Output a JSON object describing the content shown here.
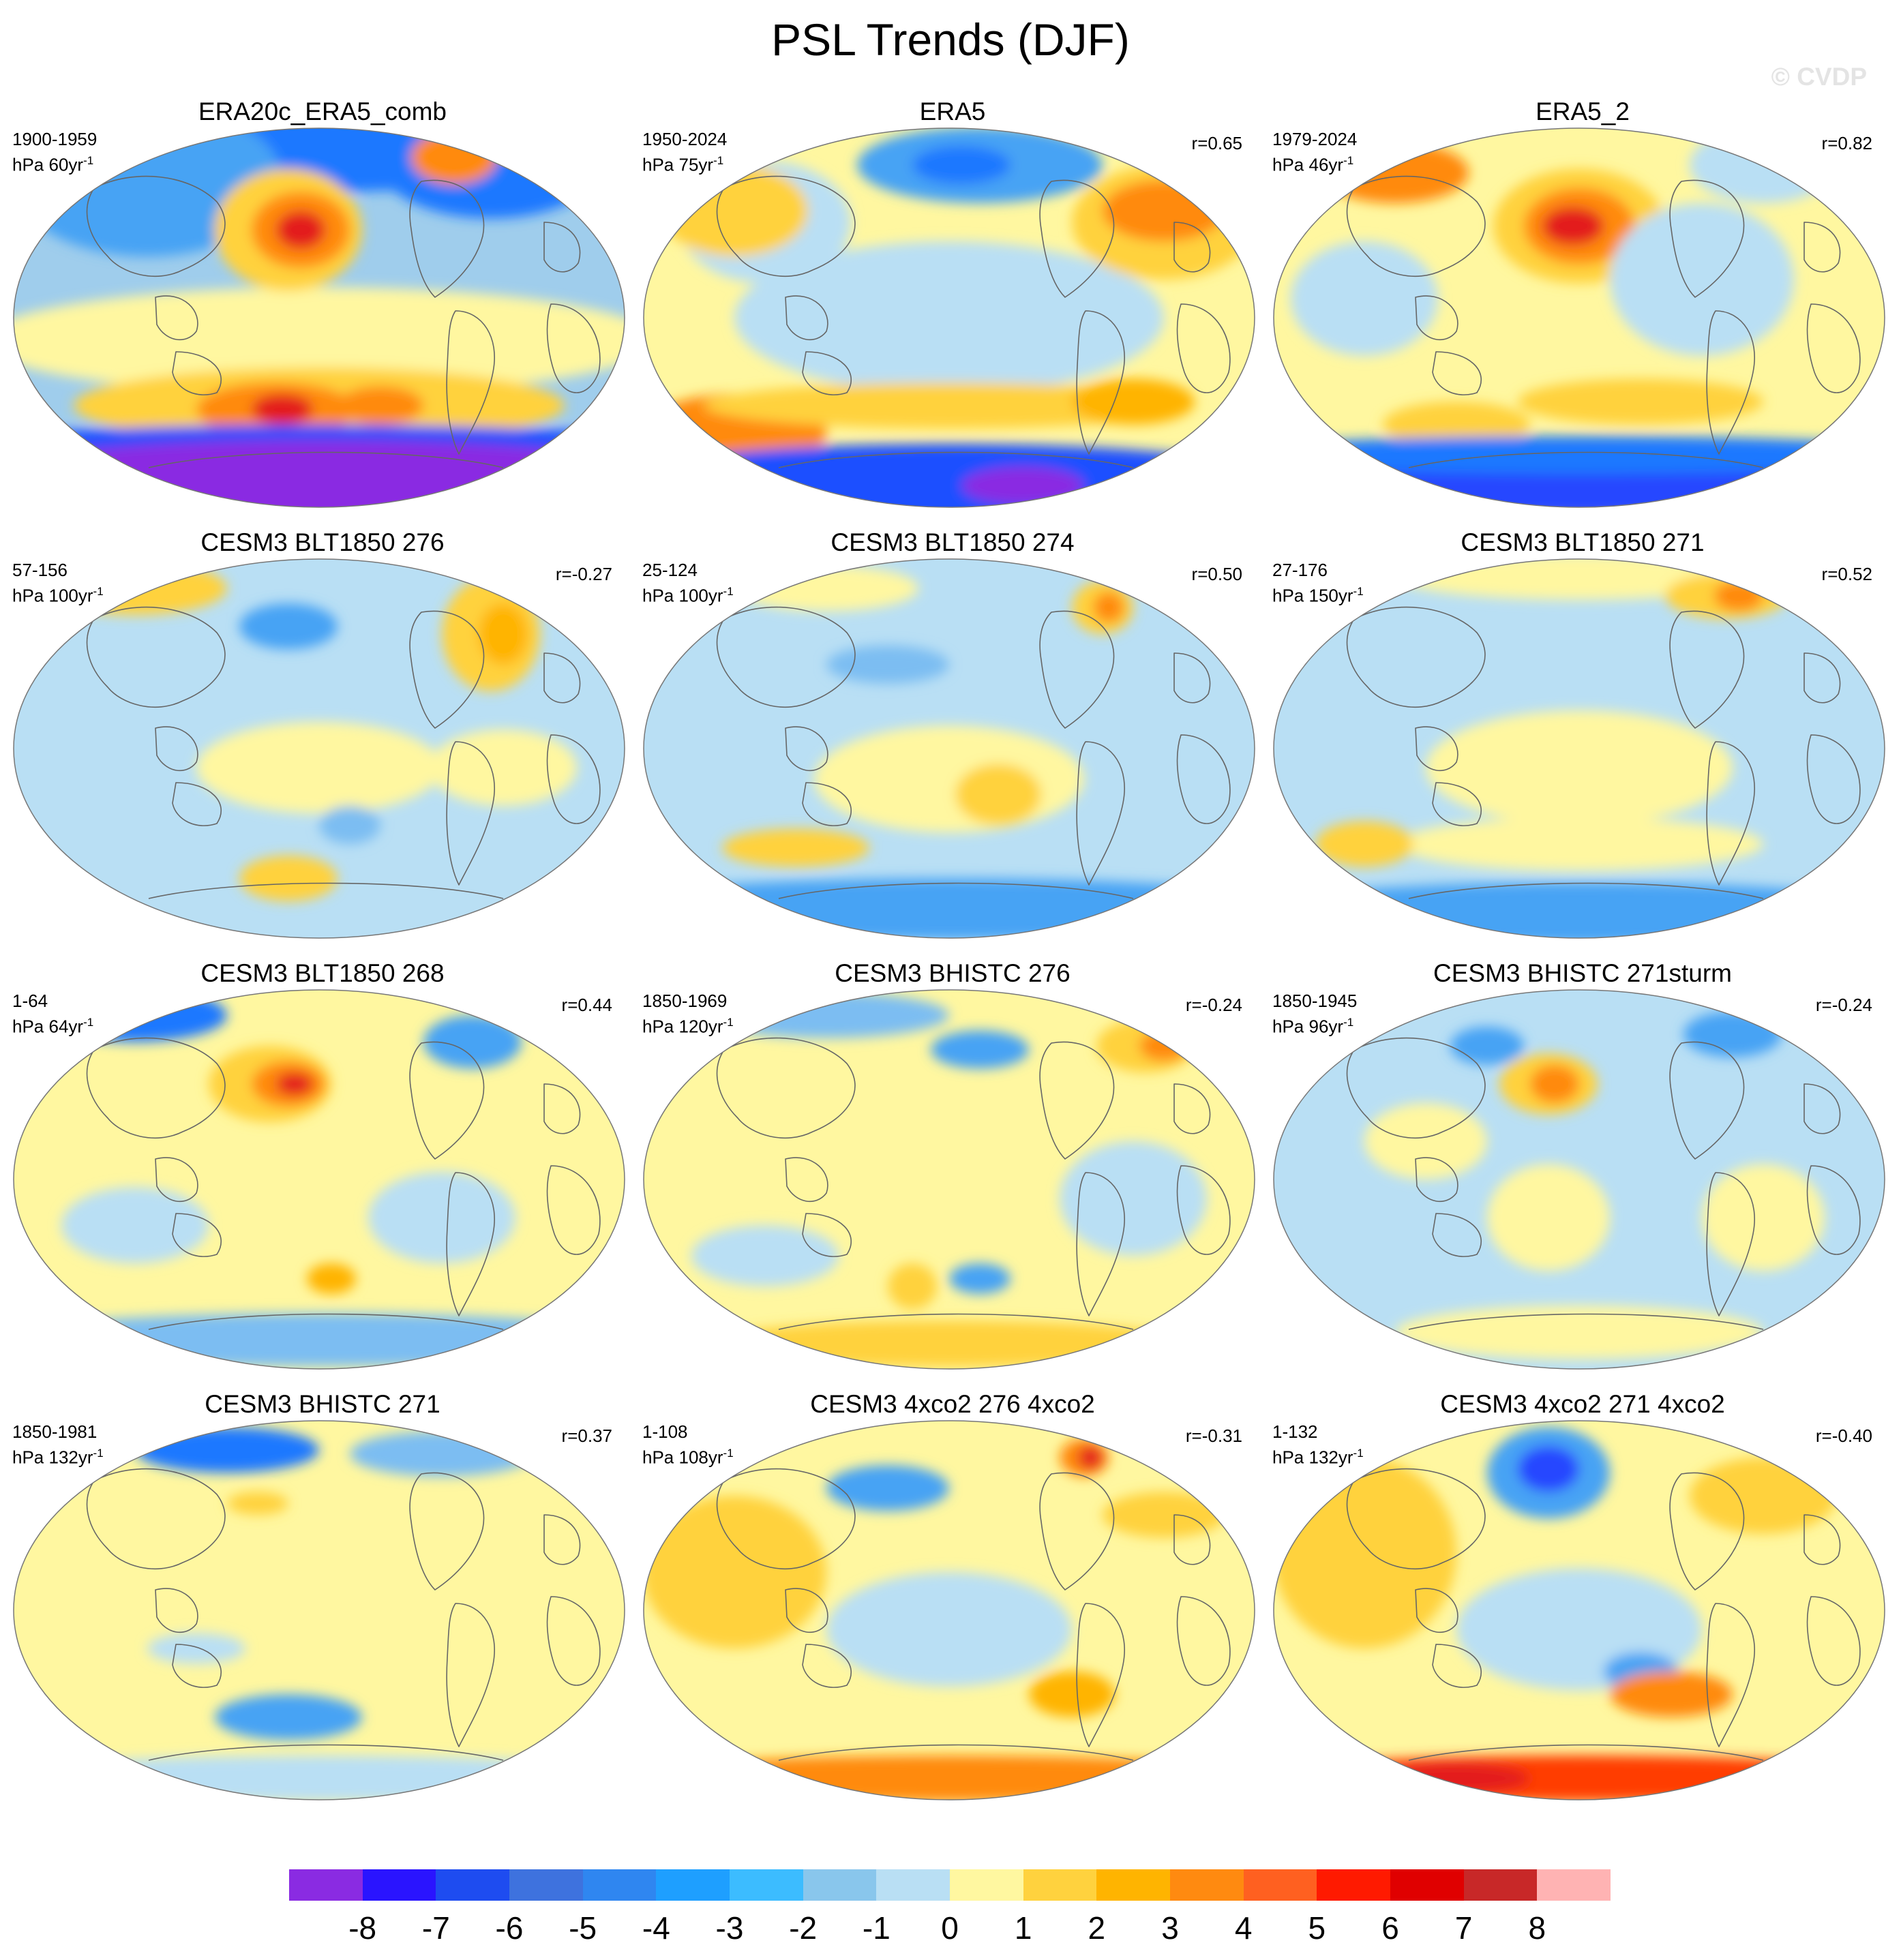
{
  "figure": {
    "title": "PSL Trends (DJF)",
    "watermark": "© CVDP"
  },
  "colors": {
    "land_outline": "#666666",
    "map_border": "#777777"
  },
  "panels": [
    {
      "title": "ERA20c_ERA5_comb",
      "period": "1900-1959",
      "unit_prefix": "hPa 60yr",
      "unit_exp": "-1",
      "corr": "",
      "base": "#9fcdec",
      "blobs": [
        [
          0.5,
          0.05,
          0.55,
          0.12,
          "#1e78ff"
        ],
        [
          0.22,
          0.14,
          0.22,
          0.2,
          "#47a3f4"
        ],
        [
          0.78,
          0.1,
          0.18,
          0.14,
          "#1e78ff"
        ],
        [
          0.5,
          0.56,
          0.55,
          0.14,
          "#fff7a0"
        ],
        [
          0.45,
          0.27,
          0.12,
          0.16,
          "#ffd23e"
        ],
        [
          0.47,
          0.27,
          0.08,
          0.1,
          "#ff8a10"
        ],
        [
          0.47,
          0.27,
          0.04,
          0.05,
          "#e31a1c"
        ],
        [
          0.72,
          0.08,
          0.07,
          0.07,
          "#ff8a10"
        ],
        [
          0.5,
          0.73,
          0.4,
          0.1,
          "#ffd23e"
        ],
        [
          0.43,
          0.74,
          0.13,
          0.07,
          "#ff8a10"
        ],
        [
          0.44,
          0.74,
          0.05,
          0.04,
          "#e31a1c"
        ],
        [
          0.6,
          0.73,
          0.07,
          0.05,
          "#ff8a10"
        ],
        [
          0.5,
          0.84,
          0.6,
          0.06,
          "#1e50ff"
        ],
        [
          0.5,
          0.93,
          0.6,
          0.11,
          "#8a2be2"
        ]
      ]
    },
    {
      "title": "ERA5",
      "period": "1950-2024",
      "unit_prefix": "hPa 75yr",
      "unit_exp": "-1",
      "corr": "r=0.65",
      "base": "#fff7a0",
      "blobs": [
        [
          0.55,
          0.1,
          0.2,
          0.1,
          "#47a3f4"
        ],
        [
          0.52,
          0.1,
          0.08,
          0.05,
          "#1e78ff"
        ],
        [
          0.2,
          0.25,
          0.14,
          0.16,
          "#b9dff4"
        ],
        [
          0.5,
          0.5,
          0.35,
          0.2,
          "#b9dff4"
        ],
        [
          0.15,
          0.22,
          0.12,
          0.12,
          "#ffd23e"
        ],
        [
          0.85,
          0.25,
          0.15,
          0.15,
          "#ffd23e"
        ],
        [
          0.85,
          0.22,
          0.1,
          0.08,
          "#ff8a10"
        ],
        [
          0.15,
          0.8,
          0.15,
          0.1,
          "#ff8a10"
        ],
        [
          0.5,
          0.73,
          0.4,
          0.06,
          "#ffd23e"
        ],
        [
          0.8,
          0.72,
          0.1,
          0.06,
          "#ffb400"
        ],
        [
          0.5,
          0.93,
          0.55,
          0.1,
          "#1e50ff"
        ],
        [
          0.62,
          0.94,
          0.1,
          0.05,
          "#8a2be2"
        ]
      ]
    },
    {
      "title": "ERA5_2",
      "period": "1979-2024",
      "unit_prefix": "hPa 46yr",
      "unit_exp": "-1",
      "corr": "r=0.82",
      "base": "#fff7a0",
      "blobs": [
        [
          0.2,
          0.12,
          0.12,
          0.08,
          "#ff8a10"
        ],
        [
          0.5,
          0.26,
          0.14,
          0.15,
          "#ffd23e"
        ],
        [
          0.5,
          0.26,
          0.09,
          0.1,
          "#ff8a10"
        ],
        [
          0.49,
          0.26,
          0.05,
          0.05,
          "#e31a1c"
        ],
        [
          0.15,
          0.45,
          0.12,
          0.15,
          "#b9dff4"
        ],
        [
          0.7,
          0.4,
          0.15,
          0.2,
          "#b9dff4"
        ],
        [
          0.8,
          0.1,
          0.12,
          0.1,
          "#b9dff4"
        ],
        [
          0.6,
          0.72,
          0.2,
          0.06,
          "#ffd23e"
        ],
        [
          0.3,
          0.78,
          0.12,
          0.06,
          "#ffd23e"
        ],
        [
          0.5,
          0.92,
          0.6,
          0.1,
          "#2846ff"
        ],
        [
          0.5,
          0.86,
          0.6,
          0.05,
          "#1e78ff"
        ]
      ]
    },
    {
      "title": "CESM3 BLT1850 276",
      "period": "57-156",
      "unit_prefix": "hPa 100yr",
      "unit_exp": "-1",
      "corr": "r=-0.27",
      "base": "#b9dff4",
      "blobs": [
        [
          0.2,
          0.08,
          0.15,
          0.07,
          "#ffd23e"
        ],
        [
          0.78,
          0.2,
          0.08,
          0.15,
          "#ffd23e"
        ],
        [
          0.8,
          0.2,
          0.04,
          0.08,
          "#ffb400"
        ],
        [
          0.45,
          0.18,
          0.08,
          0.06,
          "#47a3f4"
        ],
        [
          0.5,
          0.55,
          0.2,
          0.12,
          "#fff7a0"
        ],
        [
          0.8,
          0.55,
          0.12,
          0.1,
          "#fff7a0"
        ],
        [
          0.45,
          0.84,
          0.08,
          0.06,
          "#ffd23e"
        ],
        [
          0.55,
          0.7,
          0.05,
          0.05,
          "#7bbdf2"
        ]
      ]
    },
    {
      "title": "CESM3 BLT1850 274",
      "period": "25-124",
      "unit_prefix": "hPa 100yr",
      "unit_exp": "-1",
      "corr": "r=0.50",
      "base": "#b9dff4",
      "blobs": [
        [
          0.3,
          0.08,
          0.15,
          0.06,
          "#fff7a0"
        ],
        [
          0.75,
          0.13,
          0.05,
          0.07,
          "#ffd23e"
        ],
        [
          0.76,
          0.13,
          0.025,
          0.04,
          "#ff8a10"
        ],
        [
          0.4,
          0.28,
          0.1,
          0.05,
          "#7bbdf2"
        ],
        [
          0.5,
          0.58,
          0.22,
          0.14,
          "#fff7a0"
        ],
        [
          0.58,
          0.62,
          0.07,
          0.08,
          "#ffd23e"
        ],
        [
          0.25,
          0.76,
          0.12,
          0.05,
          "#ffd23e"
        ],
        [
          0.5,
          0.92,
          0.6,
          0.08,
          "#47a3f4"
        ]
      ]
    },
    {
      "title": "CESM3 BLT1850 271",
      "period": "27-176",
      "unit_prefix": "hPa 150yr",
      "unit_exp": "-1",
      "corr": "r=0.52",
      "base": "#b9dff4",
      "blobs": [
        [
          0.5,
          0.05,
          0.3,
          0.06,
          "#fff7a0"
        ],
        [
          0.74,
          0.1,
          0.1,
          0.06,
          "#ffd23e"
        ],
        [
          0.76,
          0.1,
          0.04,
          0.04,
          "#ff8a10"
        ],
        [
          0.5,
          0.55,
          0.25,
          0.15,
          "#fff7a0"
        ],
        [
          0.5,
          0.75,
          0.3,
          0.07,
          "#fff7a0"
        ],
        [
          0.15,
          0.75,
          0.08,
          0.06,
          "#ffd23e"
        ],
        [
          0.5,
          0.93,
          0.55,
          0.08,
          "#47a3f4"
        ]
      ]
    },
    {
      "title": "CESM3 BLT1850 268",
      "period": "1-64",
      "unit_prefix": "hPa 64yr",
      "unit_exp": "-1",
      "corr": "r=0.44",
      "base": "#fff7a0",
      "blobs": [
        [
          0.2,
          0.07,
          0.15,
          0.07,
          "#1e78ff"
        ],
        [
          0.75,
          0.14,
          0.08,
          0.07,
          "#47a3f4"
        ],
        [
          0.42,
          0.25,
          0.1,
          0.1,
          "#ffd23e"
        ],
        [
          0.45,
          0.25,
          0.06,
          0.06,
          "#ff8a10"
        ],
        [
          0.46,
          0.25,
          0.03,
          0.03,
          "#e31a1c"
        ],
        [
          0.2,
          0.62,
          0.12,
          0.1,
          "#b9dff4"
        ],
        [
          0.7,
          0.6,
          0.12,
          0.12,
          "#b9dff4"
        ],
        [
          0.52,
          0.76,
          0.04,
          0.04,
          "#ffb400"
        ],
        [
          0.5,
          0.92,
          0.55,
          0.07,
          "#7bbdf2"
        ]
      ]
    },
    {
      "title": "CESM3 BHISTC 276",
      "period": "1850-1969",
      "unit_prefix": "hPa 120yr",
      "unit_exp": "-1",
      "corr": "r=-0.24",
      "base": "#fff7a0",
      "blobs": [
        [
          0.3,
          0.07,
          0.2,
          0.06,
          "#7bbdf2"
        ],
        [
          0.55,
          0.16,
          0.08,
          0.05,
          "#47a3f4"
        ],
        [
          0.82,
          0.15,
          0.08,
          0.07,
          "#ffd23e"
        ],
        [
          0.85,
          0.15,
          0.04,
          0.04,
          "#ff8a10"
        ],
        [
          0.2,
          0.7,
          0.12,
          0.08,
          "#b9dff4"
        ],
        [
          0.8,
          0.55,
          0.12,
          0.15,
          "#b9dff4"
        ],
        [
          0.55,
          0.76,
          0.05,
          0.04,
          "#47a3f4"
        ],
        [
          0.44,
          0.78,
          0.04,
          0.06,
          "#ffd23e"
        ],
        [
          0.5,
          0.93,
          0.4,
          0.06,
          "#ffd23e"
        ]
      ]
    },
    {
      "title": "CESM3 BHISTC 271sturm",
      "period": "1850-1945",
      "unit_prefix": "hPa 96yr",
      "unit_exp": "-1",
      "corr": "r=-0.24",
      "base": "#b9dff4",
      "blobs": [
        [
          0.45,
          0.25,
          0.08,
          0.08,
          "#ffd23e"
        ],
        [
          0.46,
          0.25,
          0.04,
          0.05,
          "#ff8a10"
        ],
        [
          0.75,
          0.12,
          0.08,
          0.06,
          "#47a3f4"
        ],
        [
          0.35,
          0.15,
          0.06,
          0.05,
          "#47a3f4"
        ],
        [
          0.25,
          0.4,
          0.1,
          0.1,
          "#fff7a0"
        ],
        [
          0.45,
          0.6,
          0.1,
          0.14,
          "#fff7a0"
        ],
        [
          0.8,
          0.6,
          0.1,
          0.14,
          "#fff7a0"
        ],
        [
          0.5,
          0.9,
          0.3,
          0.07,
          "#fff7a0"
        ]
      ]
    },
    {
      "title": "CESM3 BHISTC 271",
      "period": "1850-1981",
      "unit_prefix": "hPa 132yr",
      "unit_exp": "-1",
      "corr": "r=0.37",
      "base": "#fff7a0",
      "blobs": [
        [
          0.35,
          0.08,
          0.15,
          0.06,
          "#1e78ff"
        ],
        [
          0.7,
          0.09,
          0.15,
          0.06,
          "#7bbdf2"
        ],
        [
          0.4,
          0.22,
          0.05,
          0.03,
          "#ffd23e"
        ],
        [
          0.3,
          0.6,
          0.08,
          0.04,
          "#b9dff4"
        ],
        [
          0.45,
          0.78,
          0.12,
          0.06,
          "#47a3f4"
        ],
        [
          0.5,
          0.94,
          0.55,
          0.06,
          "#b9dff4"
        ]
      ]
    },
    {
      "title": "CESM3 4xco2 276 4xco2",
      "period": "1-108",
      "unit_prefix": "hPa 108yr",
      "unit_exp": "-1",
      "corr": "r=-0.31",
      "base": "#fff7a0",
      "blobs": [
        [
          0.4,
          0.18,
          0.1,
          0.06,
          "#47a3f4"
        ],
        [
          0.72,
          0.1,
          0.04,
          0.05,
          "#ff8a10"
        ],
        [
          0.73,
          0.1,
          0.02,
          0.03,
          "#e31a1c"
        ],
        [
          0.15,
          0.4,
          0.15,
          0.2,
          "#ffd23e"
        ],
        [
          0.5,
          0.55,
          0.2,
          0.15,
          "#b9dff4"
        ],
        [
          0.7,
          0.72,
          0.07,
          0.06,
          "#ffb400"
        ],
        [
          0.5,
          0.94,
          0.55,
          0.06,
          "#ff8a10"
        ],
        [
          0.85,
          0.25,
          0.1,
          0.06,
          "#ffd23e"
        ]
      ]
    },
    {
      "title": "CESM3 4xco2 271 4xco2",
      "period": "1-132",
      "unit_prefix": "hPa 132yr",
      "unit_exp": "-1",
      "corr": "r=-0.40",
      "base": "#fff7a0",
      "blobs": [
        [
          0.45,
          0.14,
          0.1,
          0.12,
          "#47a3f4"
        ],
        [
          0.45,
          0.13,
          0.05,
          0.06,
          "#2846ff"
        ],
        [
          0.15,
          0.35,
          0.15,
          0.25,
          "#ffd23e"
        ],
        [
          0.5,
          0.55,
          0.2,
          0.16,
          "#b9dff4"
        ],
        [
          0.6,
          0.66,
          0.06,
          0.05,
          "#47a3f4"
        ],
        [
          0.65,
          0.72,
          0.1,
          0.06,
          "#ff8a10"
        ],
        [
          0.5,
          0.94,
          0.55,
          0.06,
          "#ff3c00"
        ],
        [
          0.3,
          0.94,
          0.12,
          0.04,
          "#e31a1c"
        ],
        [
          0.8,
          0.2,
          0.12,
          0.1,
          "#ffd23e"
        ]
      ]
    }
  ],
  "colorbar": {
    "colors": [
      "#8a2be2",
      "#2a14ff",
      "#1e4cf0",
      "#3e72de",
      "#2f86f0",
      "#1e9fff",
      "#3cbcff",
      "#89c6ec",
      "#b9dff4",
      "#fff7a0",
      "#ffd23e",
      "#ffb400",
      "#ff8a10",
      "#ff6020",
      "#ff1a00",
      "#e00000",
      "#c82828",
      "#ffb3b3"
    ],
    "labels": [
      "-8",
      "-7",
      "-6",
      "-5",
      "-4",
      "-3",
      "-2",
      "-1",
      "0",
      "1",
      "2",
      "3",
      "4",
      "5",
      "6",
      "7",
      "8"
    ]
  }
}
